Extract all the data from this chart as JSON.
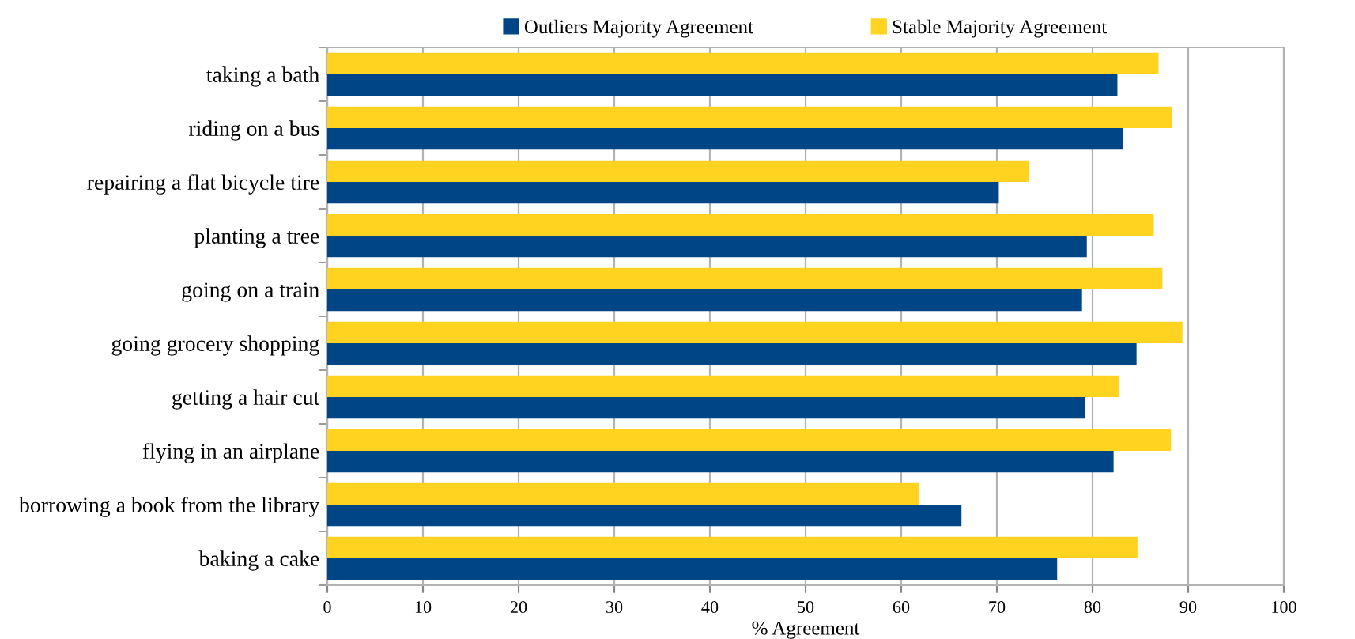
{
  "chart_data": {
    "type": "bar",
    "orientation": "horizontal",
    "xlabel": "% Agreement",
    "categories": [
      "taking a bath",
      "riding on a bus",
      "repairing a flat bicycle tire",
      "planting a tree",
      "going on a train",
      "going grocery shopping",
      "getting a hair cut",
      "flying in an airplane",
      "borrowing a book from the library",
      "baking a cake"
    ],
    "series": [
      {
        "name": "Outliers Majority Agreement",
        "color": "#004586",
        "values": [
          82.6,
          83.2,
          70.2,
          79.4,
          78.9,
          84.6,
          79.2,
          82.2,
          66.3,
          76.3
        ]
      },
      {
        "name": "Stable Majority Agreement",
        "color": "#ffd320",
        "values": [
          86.9,
          88.3,
          73.4,
          86.4,
          87.3,
          89.4,
          82.8,
          88.2,
          61.9,
          84.7
        ]
      }
    ],
    "xlim": [
      0,
      100
    ],
    "xticks": [
      0,
      10,
      20,
      30,
      40,
      50,
      60,
      70,
      80,
      90,
      100
    ],
    "grid": "x",
    "legend": "top"
  }
}
